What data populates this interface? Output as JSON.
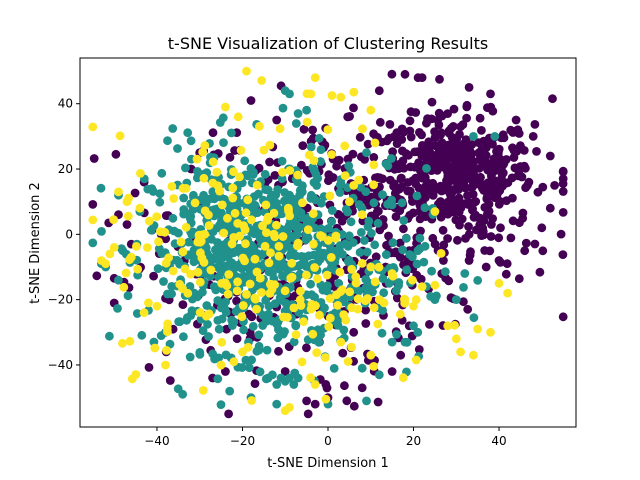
{
  "chart_data": {
    "type": "scatter",
    "title": "t-SNE Visualization of Clustering Results",
    "xlabel": "t-SNE Dimension 1",
    "ylabel": "t-SNE Dimension 2",
    "xlim": [
      -58,
      58
    ],
    "ylim": [
      -59,
      54
    ],
    "xticks": [
      -40,
      -20,
      0,
      20,
      40
    ],
    "yticks": [
      -40,
      -20,
      0,
      20,
      40
    ],
    "xtick_labels": [
      "−40",
      "−20",
      "0",
      "20",
      "40"
    ],
    "ytick_labels": [
      "−40",
      "−20",
      "0",
      "20",
      "40"
    ],
    "grid": false,
    "legend": "none",
    "colors": {
      "cluster_0": "#440154",
      "cluster_1": "#21918c",
      "cluster_2": "#fde725",
      "axes": "#000000",
      "background": "#ffffff"
    },
    "clusters": [
      {
        "color_key": "cluster_0",
        "main": {
          "cx": 30,
          "cy": 18,
          "sx": 9,
          "sy": 9,
          "n": 420
        },
        "spread": {
          "cx": 8,
          "cy": 5,
          "sx": 22,
          "sy": 18,
          "n": 330
        },
        "rim": {
          "cx": -15,
          "cy": -20,
          "sx": 18,
          "sy": 17,
          "n": 110
        },
        "points": [
          [
            -49,
            6
          ],
          [
            -47,
            3
          ],
          [
            -46,
            -3
          ],
          [
            -43,
            16
          ],
          [
            -39,
            0
          ],
          [
            -37,
            -8
          ],
          [
            -32,
            20
          ],
          [
            -30,
            25
          ],
          [
            -27,
            -44
          ],
          [
            -24,
            -42
          ],
          [
            -18,
            41
          ],
          [
            -12,
            35
          ],
          [
            -10,
            -42
          ],
          [
            -5,
            -51
          ],
          [
            -3,
            -52
          ],
          [
            0,
            -50
          ],
          [
            8,
            -47
          ],
          [
            15,
            -42
          ],
          [
            12,
            44
          ],
          [
            18,
            49
          ],
          [
            22,
            48
          ],
          [
            33,
            45
          ],
          [
            38,
            43
          ],
          [
            44,
            35
          ],
          [
            48,
            30
          ],
          [
            52,
            24
          ],
          [
            53,
            15
          ],
          [
            52,
            8
          ],
          [
            50,
            2
          ],
          [
            46,
            -5
          ],
          [
            40,
            -8
          ],
          [
            37,
            -10
          ],
          [
            33,
            -8
          ],
          [
            27,
            -8
          ],
          [
            20,
            -9
          ],
          [
            19,
            -28
          ],
          [
            17,
            -37
          ],
          [
            6,
            -30
          ],
          [
            -2,
            -33
          ]
        ]
      },
      {
        "color_key": "cluster_1",
        "main": {
          "cx": -20,
          "cy": -5,
          "sx": 11,
          "sy": 15,
          "n": 560
        },
        "spread": {
          "cx": -5,
          "cy": -10,
          "sx": 14,
          "sy": 15,
          "n": 190
        },
        "rim": {
          "cx": 5,
          "cy": -5,
          "sx": 10,
          "sy": 15,
          "n": 60
        },
        "points": [
          [
            -53,
            -9
          ],
          [
            -52,
            -10
          ],
          [
            -49,
            12
          ],
          [
            -48,
            -5
          ],
          [
            -46,
            -8
          ],
          [
            -44,
            7
          ],
          [
            -39,
            -31
          ],
          [
            -38,
            -30
          ],
          [
            -37,
            -10
          ],
          [
            -14,
            -44
          ],
          [
            -13,
            -43
          ],
          [
            -12,
            -46
          ],
          [
            -11,
            -44
          ],
          [
            -10,
            -45
          ],
          [
            -9,
            -44
          ],
          [
            -8,
            -46
          ],
          [
            -7,
            -44
          ],
          [
            -23,
            -48
          ],
          [
            -18,
            -50
          ],
          [
            -12,
            -52
          ],
          [
            -10,
            44
          ],
          [
            -9,
            43
          ],
          [
            -7,
            37
          ],
          [
            -5,
            38
          ],
          [
            0,
            -52
          ],
          [
            9,
            -51
          ],
          [
            12,
            -43
          ],
          [
            15,
            -33
          ],
          [
            18,
            -33
          ],
          [
            20,
            -28
          ],
          [
            21,
            -30
          ],
          [
            23,
            -16
          ],
          [
            24,
            -19
          ],
          [
            25,
            -20
          ],
          [
            30,
            -20
          ],
          [
            32,
            -12
          ],
          [
            34,
            30
          ],
          [
            39,
            30
          ],
          [
            9,
            25
          ],
          [
            14,
            21
          ],
          [
            15,
            9
          ],
          [
            8,
            -41
          ],
          [
            -9,
            12
          ],
          [
            -6,
            13
          ],
          [
            -4,
            11
          ]
        ]
      },
      {
        "color_key": "cluster_2",
        "main": {
          "cx": -22,
          "cy": -5,
          "sx": 14,
          "sy": 18,
          "n": 160
        },
        "spread": {
          "cx": 5,
          "cy": -18,
          "sx": 9,
          "sy": 12,
          "n": 55
        },
        "rim": {
          "cx": -5,
          "cy": 25,
          "sx": 10,
          "sy": 12,
          "n": 25
        },
        "points": [
          [
            -53,
            -8
          ],
          [
            -52,
            -9
          ],
          [
            -51,
            -6
          ],
          [
            -50,
            -4
          ],
          [
            -49,
            13
          ],
          [
            -47,
            10
          ],
          [
            -46,
            -7
          ],
          [
            -44,
            8
          ],
          [
            -43,
            -24
          ],
          [
            -42,
            -21
          ],
          [
            -38,
            -40
          ],
          [
            -40,
            -22
          ],
          [
            -25,
            -40
          ],
          [
            -20,
            -36
          ],
          [
            -22,
            -39
          ],
          [
            -21,
            36
          ],
          [
            -24,
            39
          ],
          [
            -4,
            43
          ],
          [
            -3,
            48
          ],
          [
            3,
            42
          ],
          [
            4,
            18
          ],
          [
            6,
            15
          ],
          [
            5,
            10
          ],
          [
            10,
            38
          ],
          [
            11,
            28
          ],
          [
            8,
            6
          ],
          [
            10,
            -10
          ],
          [
            12,
            -20
          ],
          [
            15,
            -12
          ],
          [
            18,
            -20
          ],
          [
            20,
            -22
          ],
          [
            22,
            -16
          ],
          [
            25,
            7
          ],
          [
            28,
            -28
          ],
          [
            30,
            -32
          ],
          [
            35,
            -29
          ],
          [
            38,
            -30
          ],
          [
            34,
            -37
          ],
          [
            31,
            -36
          ],
          [
            40,
            -15
          ],
          [
            42,
            -18
          ],
          [
            -9,
            -53
          ],
          [
            -10,
            -54
          ],
          [
            -3,
            -46
          ],
          [
            3,
            -33
          ],
          [
            10,
            -37
          ]
        ]
      }
    ]
  }
}
